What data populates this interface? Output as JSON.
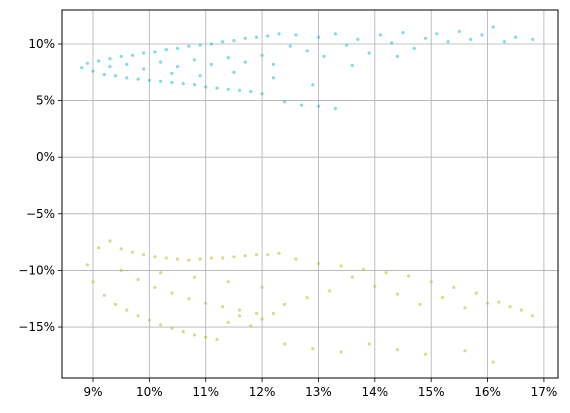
{
  "chart_data": {
    "type": "scatter",
    "title": "",
    "xlabel": "",
    "ylabel": "",
    "xlim": [
      8.45,
      17.25
    ],
    "ylim": [
      -19.5,
      13.0
    ],
    "grid": true,
    "legend": "none",
    "x_ticks": [
      {
        "value": 9,
        "label": "9%"
      },
      {
        "value": 10,
        "label": "10%"
      },
      {
        "value": 11,
        "label": "11%"
      },
      {
        "value": 12,
        "label": "12%"
      },
      {
        "value": 13,
        "label": "13%"
      },
      {
        "value": 14,
        "label": "14%"
      },
      {
        "value": 15,
        "label": "15%"
      },
      {
        "value": 16,
        "label": "16%"
      },
      {
        "value": 17,
        "label": "17%"
      }
    ],
    "y_ticks": [
      {
        "value": 10,
        "label": "10%"
      },
      {
        "value": 5,
        "label": "5%"
      },
      {
        "value": 0,
        "label": "0%"
      },
      {
        "value": -5,
        "label": "−5%"
      },
      {
        "value": -10,
        "label": "−10%"
      },
      {
        "value": -15,
        "label": "−15%"
      }
    ],
    "series": [
      {
        "color": "#17becf",
        "points": [
          [
            8.8,
            7.9
          ],
          [
            8.9,
            8.3
          ],
          [
            9.0,
            7.6
          ],
          [
            9.1,
            8.5
          ],
          [
            9.2,
            7.3
          ],
          [
            9.3,
            8.7
          ],
          [
            9.4,
            7.2
          ],
          [
            9.5,
            8.9
          ],
          [
            9.6,
            7.0
          ],
          [
            9.7,
            9.0
          ],
          [
            9.8,
            6.9
          ],
          [
            9.9,
            9.2
          ],
          [
            10.0,
            6.8
          ],
          [
            10.1,
            9.3
          ],
          [
            10.2,
            6.7
          ],
          [
            10.3,
            9.5
          ],
          [
            10.4,
            6.6
          ],
          [
            10.5,
            9.6
          ],
          [
            10.6,
            6.5
          ],
          [
            10.7,
            9.8
          ],
          [
            10.8,
            6.4
          ],
          [
            10.9,
            9.9
          ],
          [
            11.0,
            6.2
          ],
          [
            11.1,
            10.0
          ],
          [
            11.2,
            6.1
          ],
          [
            11.3,
            10.2
          ],
          [
            11.4,
            6.0
          ],
          [
            11.5,
            10.3
          ],
          [
            11.6,
            5.9
          ],
          [
            11.7,
            10.5
          ],
          [
            11.8,
            5.8
          ],
          [
            11.9,
            10.6
          ],
          [
            12.0,
            5.6
          ],
          [
            12.1,
            10.7
          ],
          [
            12.2,
            7.0
          ],
          [
            12.3,
            10.9
          ],
          [
            9.3,
            8.0
          ],
          [
            9.6,
            8.2
          ],
          [
            9.9,
            7.8
          ],
          [
            10.2,
            8.4
          ],
          [
            10.5,
            8.0
          ],
          [
            10.8,
            8.6
          ],
          [
            11.1,
            8.2
          ],
          [
            11.4,
            8.8
          ],
          [
            11.7,
            8.4
          ],
          [
            12.0,
            9.0
          ],
          [
            10.4,
            7.4
          ],
          [
            10.9,
            7.2
          ],
          [
            11.5,
            7.5
          ],
          [
            12.2,
            8.2
          ],
          [
            12.5,
            9.8
          ],
          [
            12.6,
            10.8
          ],
          [
            12.8,
            9.4
          ],
          [
            13.0,
            10.6
          ],
          [
            13.1,
            8.9
          ],
          [
            13.3,
            10.9
          ],
          [
            13.5,
            9.9
          ],
          [
            13.7,
            10.4
          ],
          [
            13.9,
            9.2
          ],
          [
            14.1,
            10.8
          ],
          [
            14.3,
            10.1
          ],
          [
            14.5,
            11.0
          ],
          [
            14.7,
            9.6
          ],
          [
            14.9,
            10.5
          ],
          [
            15.1,
            10.9
          ],
          [
            15.3,
            10.2
          ],
          [
            15.5,
            11.1
          ],
          [
            15.7,
            10.4
          ],
          [
            15.9,
            10.8
          ],
          [
            16.1,
            11.5
          ],
          [
            16.3,
            10.2
          ],
          [
            16.5,
            10.6
          ],
          [
            16.8,
            10.4
          ],
          [
            12.4,
            4.9
          ],
          [
            12.7,
            4.6
          ],
          [
            13.0,
            4.5
          ],
          [
            13.3,
            4.3
          ],
          [
            12.9,
            6.4
          ],
          [
            13.6,
            8.1
          ],
          [
            14.4,
            8.9
          ]
        ]
      },
      {
        "color": "#bcbd22",
        "points": [
          [
            8.9,
            -9.5
          ],
          [
            9.0,
            -11.0
          ],
          [
            9.1,
            -8.0
          ],
          [
            9.2,
            -12.2
          ],
          [
            9.3,
            -7.4
          ],
          [
            9.4,
            -13.0
          ],
          [
            9.5,
            -8.1
          ],
          [
            9.6,
            -13.5
          ],
          [
            9.7,
            -8.4
          ],
          [
            9.8,
            -14.0
          ],
          [
            9.9,
            -8.6
          ],
          [
            10.0,
            -14.4
          ],
          [
            10.1,
            -8.8
          ],
          [
            10.2,
            -14.8
          ],
          [
            10.3,
            -8.9
          ],
          [
            10.4,
            -15.1
          ],
          [
            10.5,
            -9.0
          ],
          [
            10.6,
            -15.4
          ],
          [
            10.7,
            -9.1
          ],
          [
            10.8,
            -15.7
          ],
          [
            10.9,
            -9.0
          ],
          [
            11.0,
            -15.9
          ],
          [
            11.1,
            -8.9
          ],
          [
            11.2,
            -16.1
          ],
          [
            11.3,
            -8.9
          ],
          [
            11.4,
            -14.6
          ],
          [
            11.5,
            -8.8
          ],
          [
            11.6,
            -14.0
          ],
          [
            11.7,
            -8.7
          ],
          [
            11.8,
            -14.9
          ],
          [
            11.9,
            -8.6
          ],
          [
            12.0,
            -14.3
          ],
          [
            12.1,
            -8.6
          ],
          [
            12.2,
            -13.8
          ],
          [
            12.3,
            -8.5
          ],
          [
            12.4,
            -13.0
          ],
          [
            9.5,
            -10.0
          ],
          [
            9.8,
            -10.8
          ],
          [
            10.1,
            -11.5
          ],
          [
            10.4,
            -12.0
          ],
          [
            10.7,
            -12.5
          ],
          [
            11.0,
            -12.9
          ],
          [
            11.3,
            -13.2
          ],
          [
            11.6,
            -13.5
          ],
          [
            11.9,
            -13.8
          ],
          [
            10.2,
            -10.2
          ],
          [
            10.8,
            -10.6
          ],
          [
            11.4,
            -11.0
          ],
          [
            12.0,
            -11.5
          ],
          [
            12.6,
            -9.0
          ],
          [
            12.8,
            -12.4
          ],
          [
            13.0,
            -9.4
          ],
          [
            13.2,
            -11.8
          ],
          [
            13.4,
            -9.6
          ],
          [
            13.6,
            -10.6
          ],
          [
            13.8,
            -9.9
          ],
          [
            14.0,
            -11.4
          ],
          [
            14.2,
            -10.2
          ],
          [
            14.4,
            -12.1
          ],
          [
            14.6,
            -10.5
          ],
          [
            14.8,
            -13.0
          ],
          [
            15.0,
            -11.0
          ],
          [
            15.2,
            -12.4
          ],
          [
            15.4,
            -11.5
          ],
          [
            15.6,
            -13.3
          ],
          [
            15.8,
            -12.0
          ],
          [
            16.0,
            -12.9
          ],
          [
            16.2,
            -12.8
          ],
          [
            16.4,
            -13.2
          ],
          [
            16.6,
            -13.5
          ],
          [
            16.8,
            -14.0
          ],
          [
            12.4,
            -16.5
          ],
          [
            12.9,
            -16.9
          ],
          [
            13.4,
            -17.2
          ],
          [
            13.9,
            -16.5
          ],
          [
            14.4,
            -17.0
          ],
          [
            14.9,
            -17.4
          ],
          [
            15.6,
            -17.1
          ],
          [
            16.1,
            -18.1
          ]
        ]
      }
    ]
  }
}
